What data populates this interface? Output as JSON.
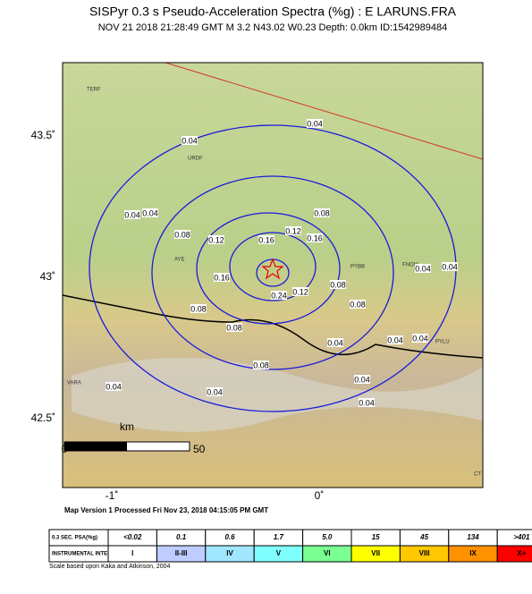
{
  "header": {
    "title": "SISPyr 0.3 s Pseudo-Acceleration Spectra (%g) : E LARUNS.FRA",
    "subtitle": "NOV 21 2018 21:28:49  GMT    M 3.2    N43.02 W0.23    Depth: 0.0km    ID:1542989484"
  },
  "map": {
    "lat_labels": [
      "43.5˚",
      "43˚",
      "42.5˚"
    ],
    "lon_labels": [
      "-1˚",
      "0˚"
    ],
    "scale": {
      "unit": "km",
      "start": "0",
      "end": "50"
    },
    "stations": [
      "TERF",
      "URDF",
      "AYE",
      "PYBB",
      "FNOM",
      "PYLU",
      "VARA",
      "CT"
    ],
    "contour_labels": [
      "0.04",
      "0.04",
      "0.04",
      "0.04",
      "0.08",
      "0.08",
      "0.12",
      "0.12",
      "0.16",
      "0.16",
      "0.16",
      "0.24",
      "0.12",
      "0.08",
      "0.08",
      "0.08",
      "0.08",
      "0.08",
      "0.04",
      "0.04",
      "0.04",
      "0.04",
      "0.04",
      "0.04",
      "0.04",
      "0.04",
      "0.04"
    ]
  },
  "footer": {
    "processed": "Map Version 1 Processed Fri Nov 23, 2018 04:15:05 PM GMT",
    "scale_note": "Scale based upon Kaka and Atkinson, 2004"
  },
  "legend": {
    "psa_header": "0.3 SEC. PSA(%g)",
    "psa": [
      "<0.02",
      "0.1",
      "0.6",
      "1.7",
      "5.0",
      "15",
      "45",
      "134",
      ">401"
    ],
    "intensity_header": "INSTRUMENTAL INTENSITY",
    "intensity": [
      "I",
      "II-III",
      "IV",
      "V",
      "VI",
      "VII",
      "VIII",
      "IX",
      "X+"
    ],
    "colors": [
      "#ffffff",
      "#bfccff",
      "#a0e6ff",
      "#80ffff",
      "#7aff93",
      "#ffff00",
      "#ffc800",
      "#ff9100",
      "#ff0000"
    ]
  }
}
